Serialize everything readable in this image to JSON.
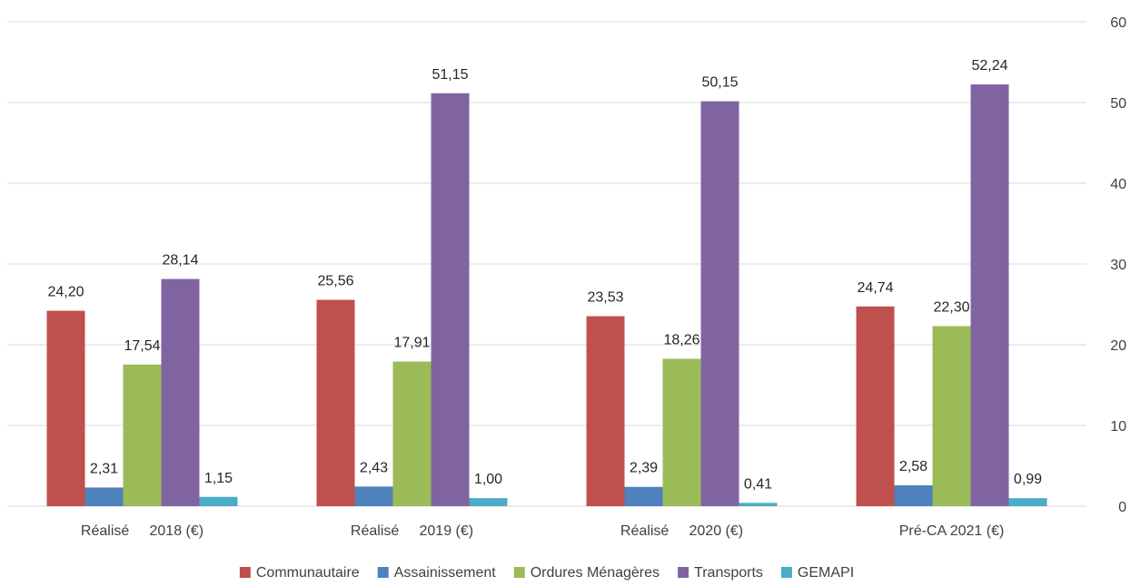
{
  "chart_data": {
    "type": "bar",
    "categories": [
      "Réalisé     2018 (€)",
      "Réalisé     2019 (€)",
      "Réalisé     2020 (€)",
      "Pré-CA 2021 (€)"
    ],
    "series": [
      {
        "name": "Communautaire",
        "color": "#c0504d",
        "values": [
          24.2,
          25.56,
          23.53,
          24.74
        ],
        "labels": [
          "24,20",
          "25,56",
          "23,53",
          "24,74"
        ]
      },
      {
        "name": "Assainissement",
        "color": "#4f81bd",
        "values": [
          2.31,
          2.43,
          2.39,
          2.58
        ],
        "labels": [
          "2,31",
          "2,43",
          "2,39",
          "2,58"
        ]
      },
      {
        "name": "Ordures Ménagères",
        "color": "#9bbb59",
        "values": [
          17.54,
          17.91,
          18.26,
          22.3
        ],
        "labels": [
          "17,54",
          "17,91",
          "18,26",
          "22,30"
        ]
      },
      {
        "name": "Transports",
        "color": "#8064a2",
        "values": [
          28.14,
          51.15,
          50.15,
          52.24
        ],
        "labels": [
          "28,14",
          "51,15",
          "50,15",
          "52,24"
        ]
      },
      {
        "name": "GEMAPI",
        "color": "#4bacc6",
        "values": [
          1.15,
          1.0,
          0.41,
          0.99
        ],
        "labels": [
          "1,15",
          "1,00",
          "0,41",
          "0,99"
        ]
      }
    ],
    "ylim": [
      0,
      60
    ],
    "yticks": [
      "0",
      "10",
      "20",
      "30",
      "40",
      "50",
      "60"
    ],
    "y_axis_side": "right",
    "grid": true,
    "legend_position": "bottom"
  }
}
